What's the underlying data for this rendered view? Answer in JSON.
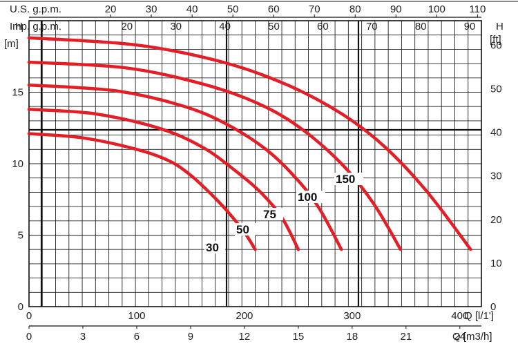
{
  "chart_data": {
    "type": "line",
    "title": "",
    "grid": true,
    "x_primary": {
      "label": "Q [l/1']",
      "range": [
        0,
        420
      ],
      "ticks": [
        0,
        100,
        200,
        300,
        400
      ],
      "tick_labels": [
        "0",
        "100",
        "200",
        "300",
        "400"
      ]
    },
    "x_m3h": {
      "label": "Q [m3/h]",
      "ticks": [
        0,
        3,
        6,
        9,
        12,
        15,
        18,
        21,
        24
      ],
      "tick_labels": [
        "0",
        "3",
        "6",
        "9",
        "12",
        "15",
        "18",
        "21",
        "24"
      ]
    },
    "x_usgpm": {
      "label": "U.S. g.p.m.",
      "ticks": [
        20,
        30,
        40,
        50,
        60,
        70,
        80,
        90,
        100,
        110
      ],
      "tick_labels": [
        "20",
        "30",
        "40",
        "50",
        "60",
        "70",
        "80",
        "90",
        "100",
        "110"
      ]
    },
    "x_impgpm": {
      "label": "Imp. g.p.m.",
      "ticks": [
        20,
        30,
        40,
        50,
        60,
        70,
        80,
        90
      ],
      "tick_labels": [
        "20",
        "30",
        "40",
        "50",
        "60",
        "70",
        "80",
        "90"
      ]
    },
    "y_primary": {
      "title": "H",
      "unit": "[m]",
      "range": [
        0,
        20
      ],
      "ticks": [
        0,
        5,
        10,
        15
      ],
      "tick_labels": [
        "0",
        "5",
        "10",
        "15"
      ]
    },
    "y_ft": {
      "title": "H",
      "unit": "[ft]",
      "ticks": [
        0,
        10,
        20,
        30,
        40,
        50,
        60
      ],
      "tick_labels": [
        "0",
        "10",
        "20",
        "30",
        "40",
        "50",
        "60"
      ]
    },
    "series": [
      {
        "name": "30",
        "color": "#e41e26",
        "x": [
          0,
          50,
          100,
          130,
          150,
          170,
          185,
          200,
          210
        ],
        "y": [
          12.1,
          11.8,
          11.0,
          10.2,
          9.2,
          7.8,
          6.6,
          5.2,
          4.0
        ]
      },
      {
        "name": "50",
        "color": "#e41e26",
        "x": [
          0,
          60,
          120,
          160,
          190,
          215,
          235,
          250
        ],
        "y": [
          13.8,
          13.5,
          12.5,
          11.2,
          9.6,
          8.0,
          6.2,
          4.0
        ]
      },
      {
        "name": "75",
        "color": "#e41e26",
        "x": [
          0,
          80,
          140,
          180,
          220,
          250,
          270,
          290
        ],
        "y": [
          15.5,
          15.1,
          14.1,
          12.9,
          11.0,
          8.8,
          6.8,
          4.0
        ]
      },
      {
        "name": "100",
        "color": "#e41e26",
        "x": [
          0,
          90,
          160,
          210,
          250,
          290,
          320,
          345
        ],
        "y": [
          17.1,
          16.7,
          15.6,
          14.3,
          12.6,
          10.0,
          7.2,
          4.0
        ]
      },
      {
        "name": "150",
        "color": "#e41e26",
        "x": [
          0,
          100,
          180,
          240,
          290,
          330,
          370,
          410
        ],
        "y": [
          18.8,
          18.3,
          17.1,
          15.5,
          13.5,
          11.2,
          8.0,
          4.0
        ]
      }
    ]
  }
}
